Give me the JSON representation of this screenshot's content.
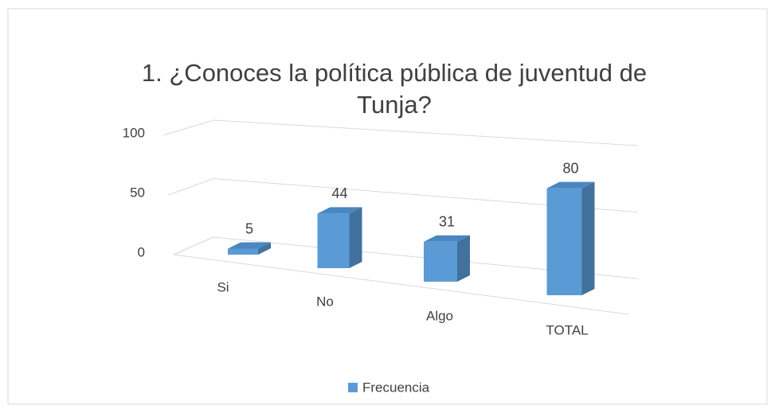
{
  "chart_data": {
    "type": "bar3d",
    "title": "1. ¿Conoces la política pública de juventud de Tunja?",
    "categories": [
      "Si",
      "No",
      "Algo",
      "TOTAL"
    ],
    "series": [
      {
        "name": "Frecuencia",
        "color": "#5b9bd5",
        "values": [
          5,
          44,
          31,
          80
        ]
      }
    ],
    "ylim": [
      0,
      100
    ],
    "yticks": [
      0,
      50,
      100
    ],
    "grid": true,
    "legend": "bottom"
  }
}
